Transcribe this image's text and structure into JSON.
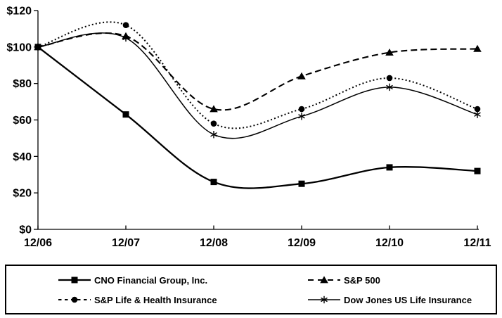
{
  "chart_data": {
    "type": "line",
    "title": "",
    "xlabel": "",
    "ylabel": "",
    "categories": [
      "12/06",
      "12/07",
      "12/08",
      "12/09",
      "12/10",
      "12/11"
    ],
    "y_tick_labels": [
      "$0",
      "$20",
      "$40",
      "$60",
      "$80",
      "$100",
      "$120"
    ],
    "ylim": [
      0,
      120
    ],
    "y_tick_step": 20,
    "grid": false,
    "line_color": "#000000",
    "background_color": "#ffffff",
    "legend_position": "bottom-box",
    "smoothed_lines": true,
    "series": [
      {
        "name": "CNO Financial Group, Inc.",
        "marker": "square",
        "line": "solid",
        "values": [
          100,
          63,
          26,
          25,
          34,
          32
        ]
      },
      {
        "name": "S&P 500",
        "marker": "triangle",
        "line": "dashed",
        "values": [
          100,
          106,
          66,
          84,
          97,
          99
        ]
      },
      {
        "name": "S&P Life & Health Insurance",
        "marker": "circle",
        "line": "dotted",
        "values": [
          100,
          112,
          58,
          66,
          83,
          66
        ]
      },
      {
        "name": "Dow Jones US Life Insurance",
        "marker": "asterisk",
        "line": "solid-thin",
        "values": [
          100,
          105,
          52,
          62,
          78,
          63
        ]
      }
    ]
  }
}
